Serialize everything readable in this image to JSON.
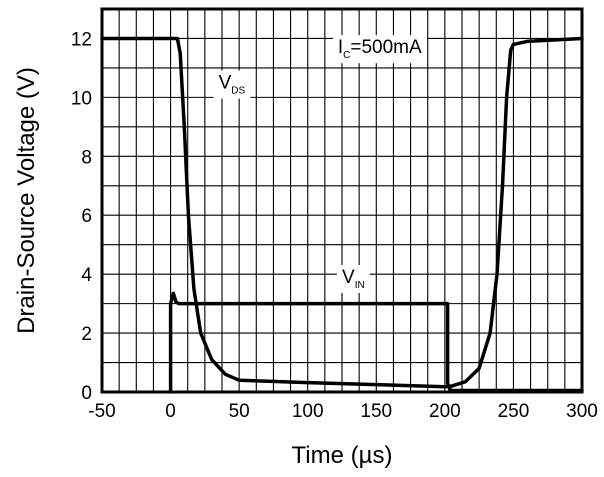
{
  "chart_data": {
    "type": "line",
    "xlabel": "Time (µs)",
    "ylabel": "Drain-Source Voltage (V)",
    "xlim": [
      -50,
      300
    ],
    "ylim": [
      0,
      13
    ],
    "x_ticks": [
      -50,
      0,
      50,
      100,
      150,
      200,
      250,
      300
    ],
    "y_ticks": [
      0,
      2,
      4,
      6,
      8,
      10,
      12
    ],
    "grid": true,
    "x_minor_step": 12.5,
    "y_minor_step": 1,
    "series": [
      {
        "name": "VDS",
        "color": "#000000",
        "x": [
          -50,
          0,
          5,
          7,
          10,
          13,
          17,
          22,
          30,
          40,
          50,
          100,
          150,
          200,
          205,
          215,
          225,
          233,
          238,
          242,
          245,
          248,
          250,
          260,
          300
        ],
        "y": [
          12.0,
          12.0,
          12.0,
          11.5,
          9.0,
          6.0,
          3.5,
          2.0,
          1.1,
          0.6,
          0.4,
          0.32,
          0.25,
          0.18,
          0.2,
          0.35,
          0.8,
          2.0,
          4.0,
          7.0,
          10.0,
          11.6,
          11.8,
          11.9,
          12.0
        ]
      },
      {
        "name": "VIN",
        "color": "#000000",
        "x": [
          0,
          0,
          2,
          4,
          6,
          202,
          202,
          204,
          300
        ],
        "y": [
          0,
          3.0,
          3.35,
          3.05,
          3.0,
          3.0,
          0.3,
          0.05,
          0.05
        ]
      }
    ],
    "annotations": [
      {
        "main": "V",
        "sub": "DS",
        "x": 35,
        "y": 10.3
      },
      {
        "main": "V",
        "sub": "IN",
        "x": 125,
        "y": 3.7
      },
      {
        "main": "I",
        "sub": "C",
        "rest": "=500mA",
        "x": 122,
        "y": 11.5
      }
    ]
  }
}
